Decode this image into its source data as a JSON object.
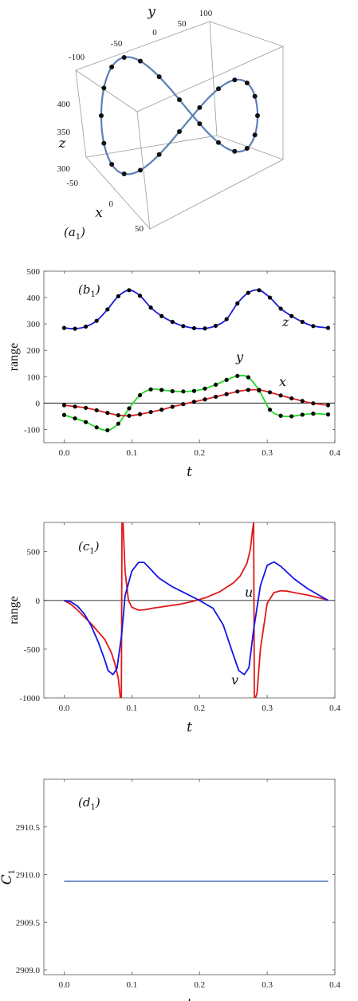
{
  "chart_data": [
    {
      "panel": "a1",
      "type": "scatter3d",
      "panel_label": {
        "main": "(a",
        "sub": "1",
        "close": ")"
      },
      "x_axis": {
        "label": "x",
        "ticks": [
          "-50",
          "0",
          "50"
        ]
      },
      "y_axis": {
        "label": "y",
        "ticks": [
          "-100",
          "-50",
          "0",
          "50",
          "100"
        ]
      },
      "z_axis": {
        "label": "z",
        "ticks": [
          "300",
          "350",
          "400"
        ]
      },
      "curve_color": "#5b7fb5",
      "point_color": "#111111",
      "description_series": "figure-eight trajectory with 24 sample points"
    },
    {
      "panel": "b1",
      "type": "line",
      "panel_label": {
        "main": "(b",
        "sub": "1",
        "close": ")"
      },
      "xlabel": "t",
      "ylabel": "range",
      "xlim": [
        -0.03,
        0.4
      ],
      "ylim": [
        -150,
        500
      ],
      "xticks": [
        "0.0",
        "0.1",
        "0.2",
        "0.3",
        "0.4"
      ],
      "xtick_values": [
        0,
        0.1,
        0.2,
        0.3,
        0.4
      ],
      "yticks": [
        "-100",
        "0",
        "100",
        "200",
        "300",
        "400",
        "500"
      ],
      "ytick_values": [
        -100,
        0,
        100,
        200,
        300,
        400,
        500
      ],
      "t_samples": [
        0.0,
        0.016,
        0.032,
        0.048,
        0.064,
        0.08,
        0.096,
        0.112,
        0.128,
        0.144,
        0.16,
        0.176,
        0.192,
        0.208,
        0.224,
        0.24,
        0.256,
        0.272,
        0.288,
        0.304,
        0.32,
        0.336,
        0.352,
        0.368,
        0.39
      ],
      "series": [
        {
          "name": "z",
          "color": "#1a1adb",
          "values": [
            285,
            282,
            290,
            312,
            355,
            405,
            428,
            407,
            362,
            330,
            308,
            292,
            284,
            283,
            293,
            318,
            378,
            418,
            428,
            400,
            358,
            330,
            308,
            292,
            285
          ]
        },
        {
          "name": "y",
          "color": "#22dd22",
          "values": [
            -45,
            -58,
            -72,
            -92,
            -103,
            -78,
            -20,
            30,
            52,
            50,
            45,
            44,
            46,
            55,
            70,
            88,
            103,
            98,
            48,
            -25,
            -48,
            -50,
            -44,
            -40,
            -43
          ]
        },
        {
          "name": "x",
          "color": "#dd2222",
          "values": [
            -8,
            -13,
            -18,
            -27,
            -37,
            -46,
            -48,
            -42,
            -34,
            -25,
            -14,
            -4,
            5,
            14,
            24,
            34,
            44,
            50,
            50,
            41,
            29,
            18,
            8,
            -1,
            -8
          ]
        }
      ]
    },
    {
      "panel": "c1",
      "type": "line",
      "panel_label": {
        "main": "(c",
        "sub": "1",
        "close": ")"
      },
      "xlabel": "t",
      "ylabel": "range",
      "xlim": [
        -0.03,
        0.4
      ],
      "ylim": [
        -1000,
        800
      ],
      "xticks": [
        "0.0",
        "0.1",
        "0.2",
        "0.3",
        "0.4"
      ],
      "xtick_values": [
        0,
        0.1,
        0.2,
        0.3,
        0.4
      ],
      "yticks": [
        "-1000",
        "-500",
        "0",
        "500"
      ],
      "ytick_values": [
        -1000,
        -500,
        0,
        500
      ],
      "series": [
        {
          "name": "u",
          "color": "#e01818",
          "x": [
            0.0,
            0.01,
            0.02,
            0.03,
            0.04,
            0.05,
            0.06,
            0.07,
            0.075,
            0.08,
            0.083,
            0.0845,
            0.0855,
            0.087,
            0.09,
            0.095,
            0.1,
            0.11,
            0.12,
            0.13,
            0.15,
            0.17,
            0.19,
            0.21,
            0.23,
            0.25,
            0.26,
            0.27,
            0.275,
            0.278,
            0.28,
            0.281,
            0.2825,
            0.285,
            0.29,
            0.3,
            0.31,
            0.32,
            0.33,
            0.34,
            0.36,
            0.38,
            0.39
          ],
          "y": [
            0,
            -40,
            -100,
            -170,
            -240,
            -320,
            -400,
            -540,
            -650,
            -800,
            -1000,
            -1000,
            800,
            800,
            300,
            0,
            -70,
            -100,
            -95,
            -80,
            -60,
            -40,
            -10,
            30,
            90,
            180,
            250,
            380,
            520,
            700,
            800,
            -1000,
            -1000,
            -950,
            -500,
            -30,
            80,
            100,
            95,
            80,
            55,
            20,
            5
          ]
        },
        {
          "name": "v",
          "color": "#1515e6",
          "x": [
            0.0,
            0.01,
            0.02,
            0.03,
            0.04,
            0.05,
            0.06,
            0.065,
            0.072,
            0.078,
            0.085,
            0.09,
            0.1,
            0.11,
            0.118,
            0.125,
            0.14,
            0.16,
            0.18,
            0.2,
            0.22,
            0.235,
            0.25,
            0.258,
            0.266,
            0.273,
            0.28,
            0.29,
            0.3,
            0.31,
            0.32,
            0.34,
            0.36,
            0.38,
            0.39
          ],
          "y": [
            0,
            -15,
            -60,
            -140,
            -260,
            -420,
            -610,
            -720,
            -760,
            -700,
            -350,
            50,
            300,
            390,
            390,
            340,
            230,
            140,
            70,
            0,
            -80,
            -250,
            -560,
            -720,
            -760,
            -690,
            -300,
            150,
            360,
            395,
            350,
            220,
            120,
            40,
            0
          ]
        }
      ],
      "series_labels": {
        "u": "u",
        "v": "v"
      }
    },
    {
      "panel": "d1",
      "type": "line",
      "panel_label": {
        "main": "(d",
        "sub": "1",
        "close": ")"
      },
      "xlabel": "t",
      "ylabel": "C",
      "ylabel_sub": "1",
      "xlim": [
        -0.03,
        0.4
      ],
      "ylim": [
        2908.95,
        2911
      ],
      "xticks": [
        "0.0",
        "0.1",
        "0.2",
        "0.3",
        "0.4"
      ],
      "xtick_values": [
        0,
        0.1,
        0.2,
        0.3,
        0.4
      ],
      "yticks": [
        "2909.0",
        "2909.5",
        "2910.0",
        "2910.5"
      ],
      "ytick_values": [
        2909.0,
        2909.5,
        2910.0,
        2910.5
      ],
      "series": [
        {
          "color": "#5b7fc0",
          "x": [
            0.0,
            0.39
          ],
          "y": [
            2909.93,
            2909.93
          ]
        }
      ]
    }
  ]
}
